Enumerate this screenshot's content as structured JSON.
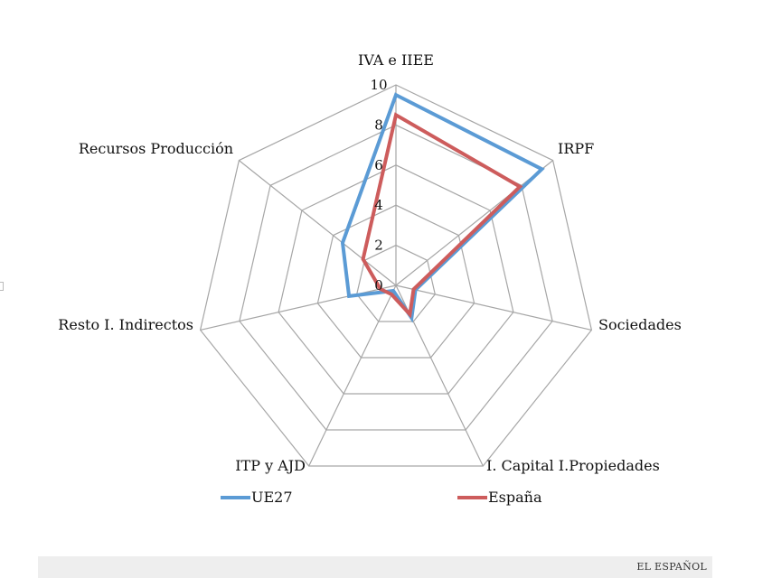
{
  "chart_data": {
    "type": "radar",
    "title": "",
    "axes": [
      "IVA e IIEE",
      "IRPF",
      "Sociedades",
      "I. Capital I.Propiedades",
      "ITP y AJD",
      "Resto I. Indirectos",
      "Recursos Producción"
    ],
    "ticks": [
      "0",
      "2",
      "4",
      "6",
      "8",
      "10"
    ],
    "range": [
      0,
      10
    ],
    "series": [
      {
        "name": "UE27",
        "color": "#5b9bd5",
        "values": [
          9.5,
          9.3,
          1.0,
          1.8,
          0.3,
          2.4,
          3.4
        ]
      },
      {
        "name": "España",
        "color": "#cd5c5c",
        "values": [
          8.5,
          7.9,
          0.9,
          1.6,
          0.5,
          0.8,
          2.1
        ]
      }
    ],
    "legend_position": "bottom"
  },
  "footer": {
    "brand": "EL ESPAÑOL"
  }
}
